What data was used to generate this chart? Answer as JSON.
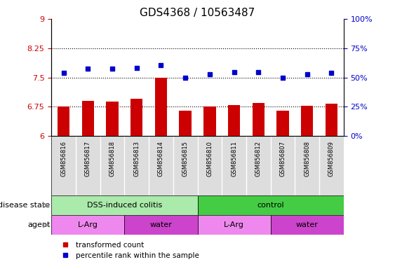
{
  "title": "GDS4368 / 10563487",
  "samples": [
    "GSM856816",
    "GSM856817",
    "GSM856818",
    "GSM856813",
    "GSM856814",
    "GSM856815",
    "GSM856810",
    "GSM856811",
    "GSM856812",
    "GSM856807",
    "GSM856808",
    "GSM856809"
  ],
  "bar_values": [
    6.75,
    6.9,
    6.88,
    6.95,
    7.5,
    6.65,
    6.76,
    6.8,
    6.85,
    6.65,
    6.77,
    6.82
  ],
  "dot_values": [
    7.62,
    7.72,
    7.72,
    7.74,
    7.82,
    7.5,
    7.59,
    7.63,
    7.63,
    7.49,
    7.59,
    7.62
  ],
  "ylim_left": [
    6,
    9
  ],
  "ylim_right": [
    0,
    100
  ],
  "yticks_left": [
    6,
    6.75,
    7.5,
    8.25,
    9
  ],
  "ytick_labels_left": [
    "6",
    "6.75",
    "7.5",
    "8.25",
    "9"
  ],
  "yticks_right": [
    0,
    25,
    50,
    75,
    100
  ],
  "ytick_labels_right": [
    "0%",
    "25%",
    "50%",
    "75%",
    "100%"
  ],
  "hlines": [
    6.75,
    7.5,
    8.25
  ],
  "bar_color": "#cc0000",
  "dot_color": "#0000cc",
  "bar_bottom": 6,
  "disease_state_groups": [
    {
      "label": "DSS-induced colitis",
      "start": 0,
      "end": 6,
      "color": "#aaeaaa"
    },
    {
      "label": "control",
      "start": 6,
      "end": 12,
      "color": "#44cc44"
    }
  ],
  "agent_groups": [
    {
      "label": "L-Arg",
      "start": 0,
      "end": 3,
      "color": "#ee88ee"
    },
    {
      "label": "water",
      "start": 3,
      "end": 6,
      "color": "#cc44cc"
    },
    {
      "label": "L-Arg",
      "start": 6,
      "end": 9,
      "color": "#ee88ee"
    },
    {
      "label": "water",
      "start": 9,
      "end": 12,
      "color": "#cc44cc"
    }
  ],
  "legend_items": [
    {
      "label": "transformed count",
      "color": "#cc0000"
    },
    {
      "label": "percentile rank within the sample",
      "color": "#0000cc"
    }
  ],
  "left_axis_color": "#cc0000",
  "right_axis_color": "#0000cc",
  "title_fontsize": 11,
  "tick_fontsize": 8,
  "sample_fontsize": 6,
  "row_label_fontsize": 8,
  "row_content_fontsize": 8,
  "legend_fontsize": 7.5,
  "bar_width": 0.5,
  "xtick_bg_color": "#dddddd"
}
